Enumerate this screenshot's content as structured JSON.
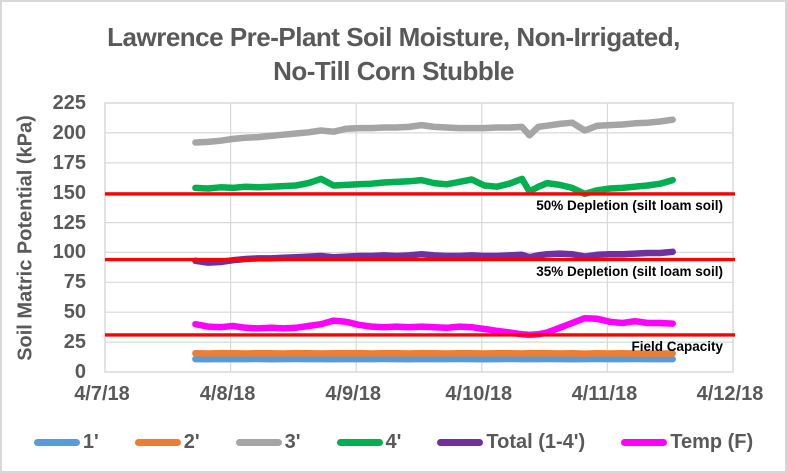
{
  "colors": {
    "text": "#595959",
    "grid": "#d9d9d9",
    "plot_border": "#d9d9d9",
    "annotation": "#000000",
    "background": "#ffffff",
    "reference_line": "#ff0000"
  },
  "chart_data": {
    "type": "line",
    "title_lines": [
      "Lawrence Pre-Plant Soil Moisture, Non-Irrigated,",
      "No-Till Corn Stubble"
    ],
    "ylabel": "Soil Matric Potential (kPa)",
    "xlabel": "",
    "ylim": [
      0,
      225
    ],
    "yticks": [
      225,
      200,
      175,
      150,
      125,
      100,
      75,
      50,
      25,
      0
    ],
    "xticks": [
      "4/7/18",
      "4/8/18",
      "4/9/18",
      "4/10/18",
      "4/11/18",
      "4/12/18"
    ],
    "x_unit": "days since 4/7/18",
    "x_domain": [
      0,
      5
    ],
    "grid": true,
    "legend_position": "bottom",
    "x": [
      0.72,
      0.82,
      0.92,
      1.02,
      1.12,
      1.22,
      1.32,
      1.42,
      1.52,
      1.62,
      1.72,
      1.82,
      1.92,
      2.02,
      2.12,
      2.22,
      2.32,
      2.42,
      2.52,
      2.62,
      2.72,
      2.82,
      2.92,
      3.02,
      3.12,
      3.22,
      3.32,
      3.38,
      3.45,
      3.52,
      3.62,
      3.72,
      3.82,
      3.92,
      4.02,
      4.12,
      4.22,
      4.32,
      4.42,
      4.52
    ],
    "series": [
      {
        "id": "1ft",
        "name": "1'",
        "color": "#5B9BD5",
        "values": [
          10.8,
          10.7,
          10.9,
          10.8,
          10.8,
          10.9,
          10.7,
          10.8,
          10.9,
          10.8,
          10.8,
          10.7,
          10.9,
          10.8,
          10.8,
          10.9,
          10.8,
          10.7,
          10.9,
          10.8,
          10.8,
          10.9,
          10.8,
          10.7,
          10.8,
          10.9,
          10.8,
          10.8,
          10.8,
          10.9,
          10.8,
          10.7,
          10.8,
          10.9,
          10.8,
          10.8,
          10.9,
          10.8,
          10.8,
          10.8
        ]
      },
      {
        "id": "2ft",
        "name": "2'",
        "color": "#ED7D31",
        "values": [
          15.7,
          15.5,
          15.8,
          15.6,
          15.5,
          15.7,
          15.6,
          15.5,
          15.8,
          15.6,
          15.5,
          15.7,
          15.6,
          15.8,
          15.5,
          15.7,
          15.6,
          15.5,
          15.8,
          15.6,
          15.5,
          15.7,
          15.6,
          15.5,
          15.7,
          15.6,
          15.5,
          15.6,
          15.7,
          15.6,
          15.5,
          15.6,
          15.4,
          15.6,
          15.5,
          15.6,
          15.5,
          15.4,
          15.5,
          15.5
        ]
      },
      {
        "id": "3ft",
        "name": "3'",
        "color": "#A5A5A5",
        "values": [
          192,
          192.5,
          193.5,
          195,
          196,
          196.5,
          197.5,
          198.5,
          199.5,
          200.5,
          202,
          201,
          203.5,
          204,
          204,
          204.5,
          204.5,
          205,
          206.5,
          205,
          204.5,
          204,
          204,
          204,
          204.5,
          204.5,
          205,
          198,
          205,
          206,
          207.5,
          208.5,
          202,
          206,
          206.5,
          207,
          208,
          208.5,
          209.5,
          211
        ]
      },
      {
        "id": "4ft",
        "name": "4'",
        "color": "#00B050",
        "values": [
          154,
          153.5,
          154.5,
          154,
          155,
          154.5,
          155,
          155.5,
          156,
          158,
          161.5,
          156,
          156.5,
          157,
          157.5,
          158.5,
          159,
          159.5,
          160.5,
          158,
          157,
          159,
          161,
          156,
          155,
          157.5,
          161.5,
          151,
          155,
          158,
          156.5,
          154,
          149,
          152,
          153.5,
          154,
          155,
          156,
          157.5,
          160.5
        ]
      },
      {
        "id": "total-1-4ft",
        "name": "Total (1-4')",
        "color": "#7030A0",
        "values": [
          93,
          91.5,
          92,
          93.5,
          94.5,
          95,
          95,
          95.5,
          96,
          96.5,
          97,
          96,
          96.5,
          97,
          97,
          97.5,
          97,
          97.5,
          98.5,
          97.5,
          97,
          97,
          97.5,
          97,
          97,
          97.5,
          98,
          96,
          97.5,
          98.5,
          99,
          98.5,
          96.5,
          98,
          98.5,
          98.5,
          99,
          99.5,
          99.5,
          100.5
        ]
      },
      {
        "id": "temp-f",
        "name": "Temp (F)",
        "color": "#FF00FF",
        "values": [
          40,
          38,
          37.5,
          38.5,
          37,
          36.5,
          37,
          36.5,
          37,
          38.5,
          40,
          43,
          42,
          39.5,
          38,
          37.5,
          38,
          37.5,
          38,
          37.5,
          37,
          38,
          37.5,
          36,
          34.5,
          33,
          31.5,
          31,
          31.5,
          33,
          37,
          41,
          45,
          44.5,
          42,
          41,
          42.5,
          41,
          41,
          40.5
        ]
      }
    ],
    "reference_lines": [
      {
        "id": "depletion-50",
        "label": "50% Depletion (silt loam soil)",
        "value": 149,
        "color": "#FF0000"
      },
      {
        "id": "depletion-35",
        "label": "35% Depletion (silt loam soil)",
        "value": 94,
        "color": "#FF0000"
      },
      {
        "id": "field-capacity",
        "label": "Field Capacity",
        "value": 31,
        "color": "#FF0000"
      }
    ]
  }
}
